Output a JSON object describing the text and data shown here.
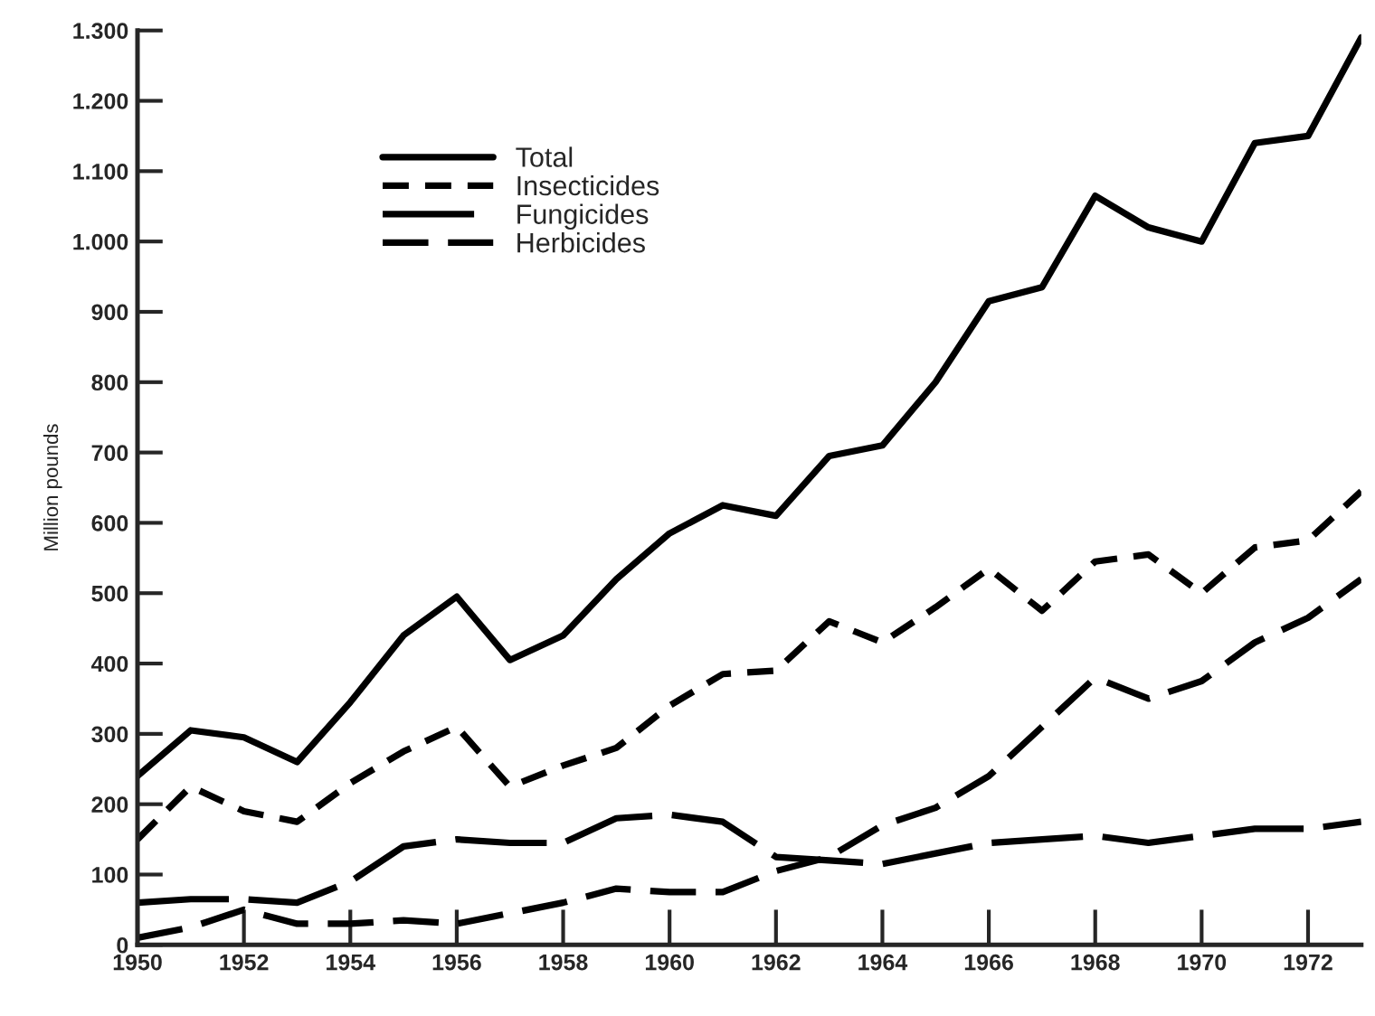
{
  "chart_data": {
    "type": "line",
    "ylabel": "Million pounds",
    "x": [
      1950,
      1951,
      1952,
      1953,
      1954,
      1955,
      1956,
      1957,
      1958,
      1959,
      1960,
      1961,
      1962,
      1963,
      1964,
      1965,
      1966,
      1967,
      1968,
      1969,
      1970,
      1971,
      1972,
      1973
    ],
    "series": [
      {
        "name": "Total",
        "color": "#000000",
        "line_style": "solid",
        "values": [
          240,
          305,
          295,
          260,
          345,
          440,
          495,
          405,
          440,
          520,
          585,
          625,
          610,
          695,
          710,
          800,
          915,
          935,
          1065,
          1020,
          1000,
          1140,
          1150,
          1290
        ]
      },
      {
        "name": "Insecticides",
        "color": "#000000",
        "line_style": "dotted",
        "values": [
          150,
          225,
          190,
          175,
          230,
          275,
          310,
          225,
          255,
          280,
          340,
          385,
          390,
          460,
          430,
          480,
          535,
          475,
          545,
          555,
          500,
          565,
          575,
          645
        ]
      },
      {
        "name": "Fungicides",
        "color": "#000000",
        "line_style": "longdash",
        "values": [
          60,
          65,
          65,
          60,
          90,
          140,
          150,
          145,
          145,
          180,
          185,
          175,
          125,
          120,
          115,
          130,
          145,
          150,
          155,
          145,
          155,
          165,
          165,
          175
        ]
      },
      {
        "name": "Herbicides",
        "color": "#000000",
        "line_style": "dashed",
        "values": [
          10,
          25,
          50,
          30,
          30,
          35,
          30,
          45,
          60,
          80,
          75,
          75,
          105,
          125,
          170,
          195,
          240,
          310,
          380,
          350,
          375,
          430,
          465,
          520
        ]
      }
    ],
    "xlim": [
      1950,
      1973
    ],
    "ylim": [
      0,
      1300
    ],
    "xticks": [
      1950,
      1952,
      1954,
      1956,
      1958,
      1960,
      1962,
      1964,
      1966,
      1968,
      1970,
      1972
    ],
    "yticks": [
      0,
      100,
      200,
      300,
      400,
      500,
      600,
      700,
      800,
      900,
      {
        "value": 1000,
        "label": "1.000"
      },
      {
        "value": 1100,
        "label": "1.100"
      },
      {
        "value": 1200,
        "label": "1.200"
      },
      {
        "value": 1300,
        "label": "1.300"
      }
    ],
    "grid": false,
    "legend": "top left",
    "marker": "none"
  }
}
